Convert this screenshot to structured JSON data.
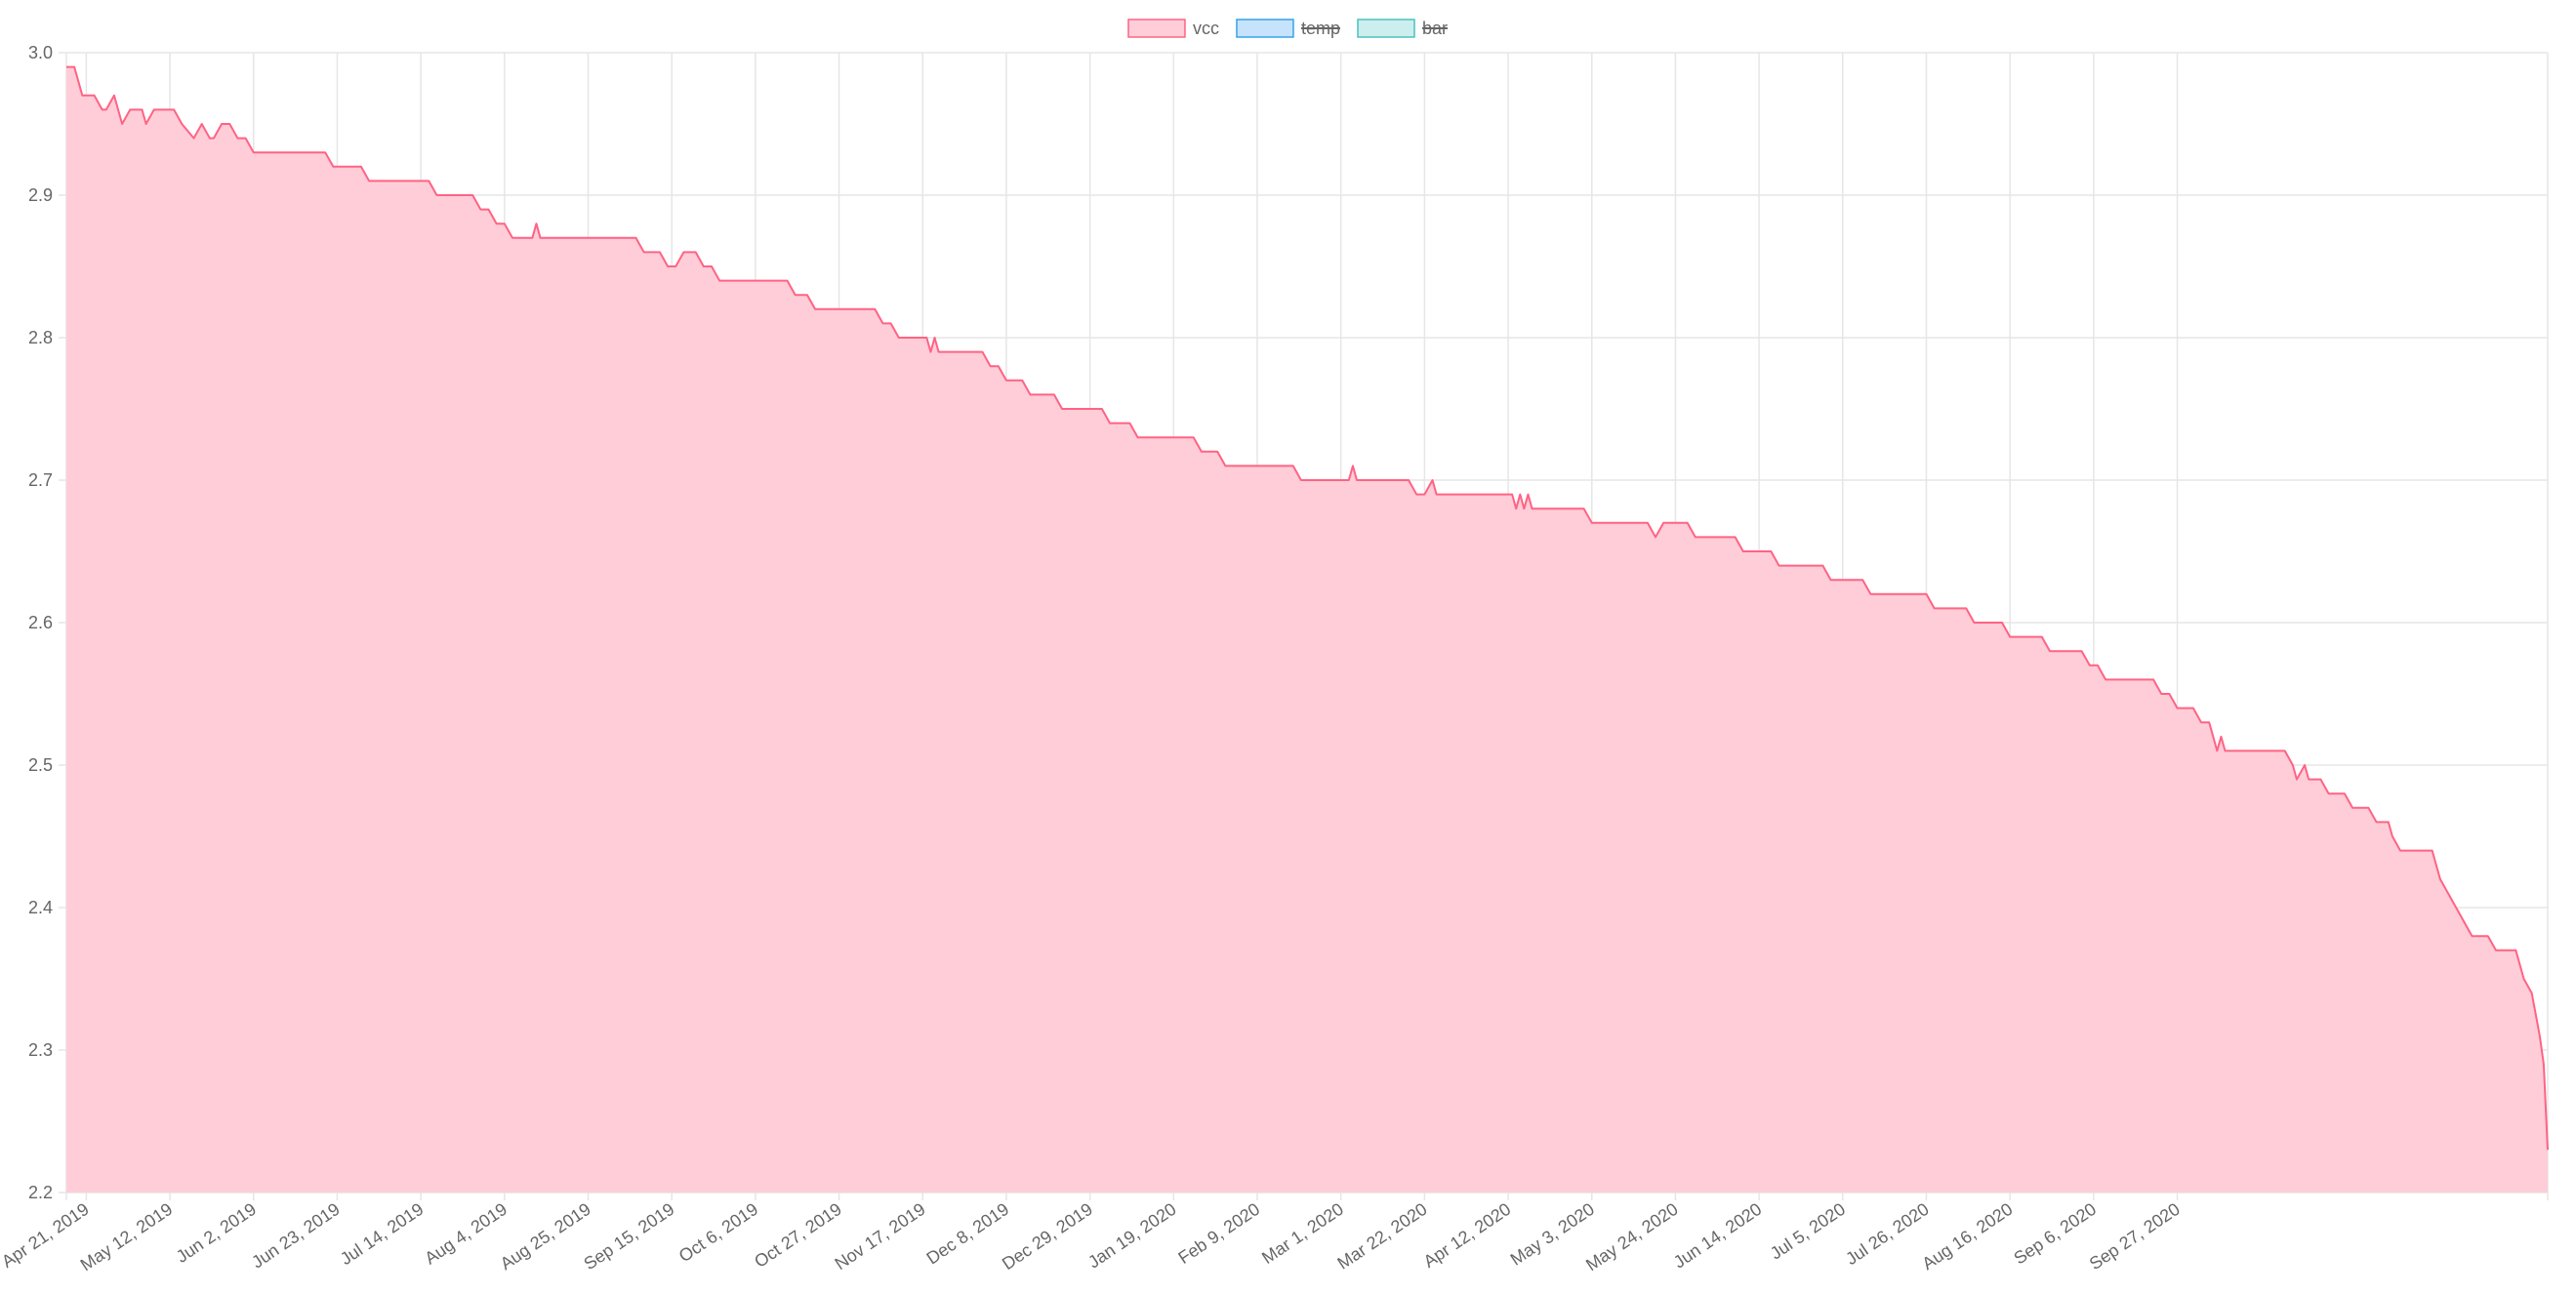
{
  "chart_data": {
    "type": "area",
    "legend": {
      "position": "top",
      "items": [
        {
          "label": "vcc",
          "fill": "#ffcdd8",
          "stroke": "#ff6384",
          "hidden": false
        },
        {
          "label": "temp",
          "fill": "#c6e3fb",
          "stroke": "#36a2eb",
          "hidden": true
        },
        {
          "label": "bar",
          "fill": "#cdeeee",
          "stroke": "#4bc0c0",
          "hidden": true
        }
      ]
    },
    "series": [
      {
        "name": "vcc",
        "fill_color": "#ffcdd8",
        "line_color": "#ff6384",
        "points": [
          [
            "2019-04-16",
            2.99
          ],
          [
            "2019-04-18",
            2.99
          ],
          [
            "2019-04-20",
            2.97
          ],
          [
            "2019-04-23",
            2.97
          ],
          [
            "2019-04-25",
            2.96
          ],
          [
            "2019-04-26",
            2.96
          ],
          [
            "2019-04-28",
            2.97
          ],
          [
            "2019-04-30",
            2.95
          ],
          [
            "2019-05-02",
            2.96
          ],
          [
            "2019-05-05",
            2.96
          ],
          [
            "2019-05-06",
            2.95
          ],
          [
            "2019-05-08",
            2.96
          ],
          [
            "2019-05-13",
            2.96
          ],
          [
            "2019-05-15",
            2.95
          ],
          [
            "2019-05-18",
            2.94
          ],
          [
            "2019-05-20",
            2.95
          ],
          [
            "2019-05-22",
            2.94
          ],
          [
            "2019-05-23",
            2.94
          ],
          [
            "2019-05-25",
            2.95
          ],
          [
            "2019-05-27",
            2.95
          ],
          [
            "2019-05-29",
            2.94
          ],
          [
            "2019-05-31",
            2.94
          ],
          [
            "2019-06-02",
            2.93
          ],
          [
            "2019-06-20",
            2.93
          ],
          [
            "2019-06-22",
            2.92
          ],
          [
            "2019-06-29",
            2.92
          ],
          [
            "2019-07-01",
            2.91
          ],
          [
            "2019-07-16",
            2.91
          ],
          [
            "2019-07-18",
            2.9
          ],
          [
            "2019-07-27",
            2.9
          ],
          [
            "2019-07-29",
            2.89
          ],
          [
            "2019-07-31",
            2.89
          ],
          [
            "2019-08-02",
            2.88
          ],
          [
            "2019-08-04",
            2.88
          ],
          [
            "2019-08-06",
            2.87
          ],
          [
            "2019-08-11",
            2.87
          ],
          [
            "2019-08-12",
            2.88
          ],
          [
            "2019-08-13",
            2.87
          ],
          [
            "2019-09-06",
            2.87
          ],
          [
            "2019-09-08",
            2.86
          ],
          [
            "2019-09-12",
            2.86
          ],
          [
            "2019-09-14",
            2.85
          ],
          [
            "2019-09-16",
            2.85
          ],
          [
            "2019-09-18",
            2.86
          ],
          [
            "2019-09-21",
            2.86
          ],
          [
            "2019-09-23",
            2.85
          ],
          [
            "2019-09-25",
            2.85
          ],
          [
            "2019-09-27",
            2.84
          ],
          [
            "2019-10-14",
            2.84
          ],
          [
            "2019-10-16",
            2.83
          ],
          [
            "2019-10-19",
            2.83
          ],
          [
            "2019-10-21",
            2.82
          ],
          [
            "2019-11-05",
            2.82
          ],
          [
            "2019-11-07",
            2.81
          ],
          [
            "2019-11-09",
            2.81
          ],
          [
            "2019-11-11",
            2.8
          ],
          [
            "2019-11-18",
            2.8
          ],
          [
            "2019-11-19",
            2.79
          ],
          [
            "2019-11-20",
            2.8
          ],
          [
            "2019-11-21",
            2.79
          ],
          [
            "2019-12-02",
            2.79
          ],
          [
            "2019-12-04",
            2.78
          ],
          [
            "2019-12-06",
            2.78
          ],
          [
            "2019-12-08",
            2.77
          ],
          [
            "2019-12-12",
            2.77
          ],
          [
            "2019-12-14",
            2.76
          ],
          [
            "2019-12-20",
            2.76
          ],
          [
            "2019-12-22",
            2.75
          ],
          [
            "2020-01-01",
            2.75
          ],
          [
            "2020-01-03",
            2.74
          ],
          [
            "2020-01-08",
            2.74
          ],
          [
            "2020-01-10",
            2.73
          ],
          [
            "2020-01-24",
            2.73
          ],
          [
            "2020-01-26",
            2.72
          ],
          [
            "2020-01-30",
            2.72
          ],
          [
            "2020-02-01",
            2.71
          ],
          [
            "2020-02-18",
            2.71
          ],
          [
            "2020-02-20",
            2.7
          ],
          [
            "2020-03-03",
            2.7
          ],
          [
            "2020-03-04",
            2.71
          ],
          [
            "2020-03-05",
            2.7
          ],
          [
            "2020-03-18",
            2.7
          ],
          [
            "2020-03-20",
            2.69
          ],
          [
            "2020-03-22",
            2.69
          ],
          [
            "2020-03-24",
            2.7
          ],
          [
            "2020-03-25",
            2.69
          ],
          [
            "2020-04-13",
            2.69
          ],
          [
            "2020-04-14",
            2.68
          ],
          [
            "2020-04-15",
            2.69
          ],
          [
            "2020-04-16",
            2.68
          ],
          [
            "2020-04-17",
            2.69
          ],
          [
            "2020-04-18",
            2.68
          ],
          [
            "2020-05-01",
            2.68
          ],
          [
            "2020-05-03",
            2.67
          ],
          [
            "2020-05-17",
            2.67
          ],
          [
            "2020-05-19",
            2.66
          ],
          [
            "2020-05-21",
            2.67
          ],
          [
            "2020-05-27",
            2.67
          ],
          [
            "2020-05-29",
            2.66
          ],
          [
            "2020-06-08",
            2.66
          ],
          [
            "2020-06-10",
            2.65
          ],
          [
            "2020-06-17",
            2.65
          ],
          [
            "2020-06-19",
            2.64
          ],
          [
            "2020-06-30",
            2.64
          ],
          [
            "2020-07-02",
            2.63
          ],
          [
            "2020-07-10",
            2.63
          ],
          [
            "2020-07-12",
            2.62
          ],
          [
            "2020-07-26",
            2.62
          ],
          [
            "2020-07-28",
            2.61
          ],
          [
            "2020-08-05",
            2.61
          ],
          [
            "2020-08-07",
            2.6
          ],
          [
            "2020-08-14",
            2.6
          ],
          [
            "2020-08-16",
            2.59
          ],
          [
            "2020-08-24",
            2.59
          ],
          [
            "2020-08-26",
            2.58
          ],
          [
            "2020-09-03",
            2.58
          ],
          [
            "2020-09-05",
            2.57
          ],
          [
            "2020-09-07",
            2.57
          ],
          [
            "2020-09-09",
            2.56
          ],
          [
            "2020-09-21",
            2.56
          ],
          [
            "2020-09-23",
            2.55
          ],
          [
            "2020-09-25",
            2.55
          ],
          [
            "2020-09-27",
            2.54
          ],
          [
            "2020-10-01",
            2.54
          ],
          [
            "2020-10-03",
            2.53
          ],
          [
            "2020-10-05",
            2.53
          ],
          [
            "2020-10-07",
            2.51
          ],
          [
            "2020-10-08",
            2.52
          ],
          [
            "2020-10-09",
            2.51
          ],
          [
            "2020-10-24",
            2.51
          ],
          [
            "2020-10-26",
            2.5
          ],
          [
            "2020-10-27",
            2.49
          ],
          [
            "2020-10-29",
            2.5
          ],
          [
            "2020-10-30",
            2.49
          ],
          [
            "2020-11-02",
            2.49
          ],
          [
            "2020-11-04",
            2.48
          ],
          [
            "2020-11-08",
            2.48
          ],
          [
            "2020-11-10",
            2.47
          ],
          [
            "2020-11-14",
            2.47
          ],
          [
            "2020-11-16",
            2.46
          ],
          [
            "2020-11-19",
            2.46
          ],
          [
            "2020-11-20",
            2.45
          ],
          [
            "2020-11-22",
            2.44
          ],
          [
            "2020-11-30",
            2.44
          ],
          [
            "2020-12-02",
            2.42
          ],
          [
            "2020-12-04",
            2.41
          ],
          [
            "2020-12-06",
            2.4
          ],
          [
            "2020-12-08",
            2.39
          ],
          [
            "2020-12-10",
            2.38
          ],
          [
            "2020-12-14",
            2.38
          ],
          [
            "2020-12-16",
            2.37
          ],
          [
            "2020-12-21",
            2.37
          ],
          [
            "2020-12-23",
            2.35
          ],
          [
            "2020-12-25",
            2.34
          ],
          [
            "2020-12-27",
            2.31
          ],
          [
            "2020-12-28",
            2.29
          ],
          [
            "2020-12-29",
            2.23
          ]
        ]
      }
    ],
    "x_axis": {
      "type": "time",
      "range": [
        "2019-04-16",
        "2020-12-29"
      ],
      "ticks": [
        {
          "date": "2019-04-21",
          "label": "Apr 21, 2019"
        },
        {
          "date": "2019-05-12",
          "label": "May 12, 2019"
        },
        {
          "date": "2019-06-02",
          "label": "Jun 2, 2019"
        },
        {
          "date": "2019-06-23",
          "label": "Jun 23, 2019"
        },
        {
          "date": "2019-07-14",
          "label": "Jul 14, 2019"
        },
        {
          "date": "2019-08-04",
          "label": "Aug 4, 2019"
        },
        {
          "date": "2019-08-25",
          "label": "Aug 25, 2019"
        },
        {
          "date": "2019-09-15",
          "label": "Sep 15, 2019"
        },
        {
          "date": "2019-10-06",
          "label": "Oct 6, 2019"
        },
        {
          "date": "2019-10-27",
          "label": "Oct 27, 2019"
        },
        {
          "date": "2019-11-17",
          "label": "Nov 17, 2019"
        },
        {
          "date": "2019-12-08",
          "label": "Dec 8, 2019"
        },
        {
          "date": "2019-12-29",
          "label": "Dec 29, 2019"
        },
        {
          "date": "2020-01-19",
          "label": "Jan 19, 2020"
        },
        {
          "date": "2020-02-09",
          "label": "Feb 9, 2020"
        },
        {
          "date": "2020-03-01",
          "label": "Mar 1, 2020"
        },
        {
          "date": "2020-03-22",
          "label": "Mar 22, 2020"
        },
        {
          "date": "2020-04-12",
          "label": "Apr 12, 2020"
        },
        {
          "date": "2020-05-03",
          "label": "May 3, 2020"
        },
        {
          "date": "2020-05-24",
          "label": "May 24, 2020"
        },
        {
          "date": "2020-06-14",
          "label": "Jun 14, 2020"
        },
        {
          "date": "2020-07-05",
          "label": "Jul 5, 2020"
        },
        {
          "date": "2020-07-26",
          "label": "Jul 26, 2020"
        },
        {
          "date": "2020-08-16",
          "label": "Aug 16, 2020"
        },
        {
          "date": "2020-09-06",
          "label": "Sep 6, 2020"
        },
        {
          "date": "2020-09-27",
          "label": "Sep 27, 2020"
        }
      ]
    },
    "y_axis": {
      "range": [
        2.2,
        3.0
      ],
      "ticks": [
        "2.2",
        "2.3",
        "2.4",
        "2.5",
        "2.6",
        "2.7",
        "2.8",
        "2.9",
        "3.0"
      ]
    },
    "grid": true,
    "colors": {
      "grid": "#e6e6e6",
      "tick_text": "#666666"
    }
  }
}
